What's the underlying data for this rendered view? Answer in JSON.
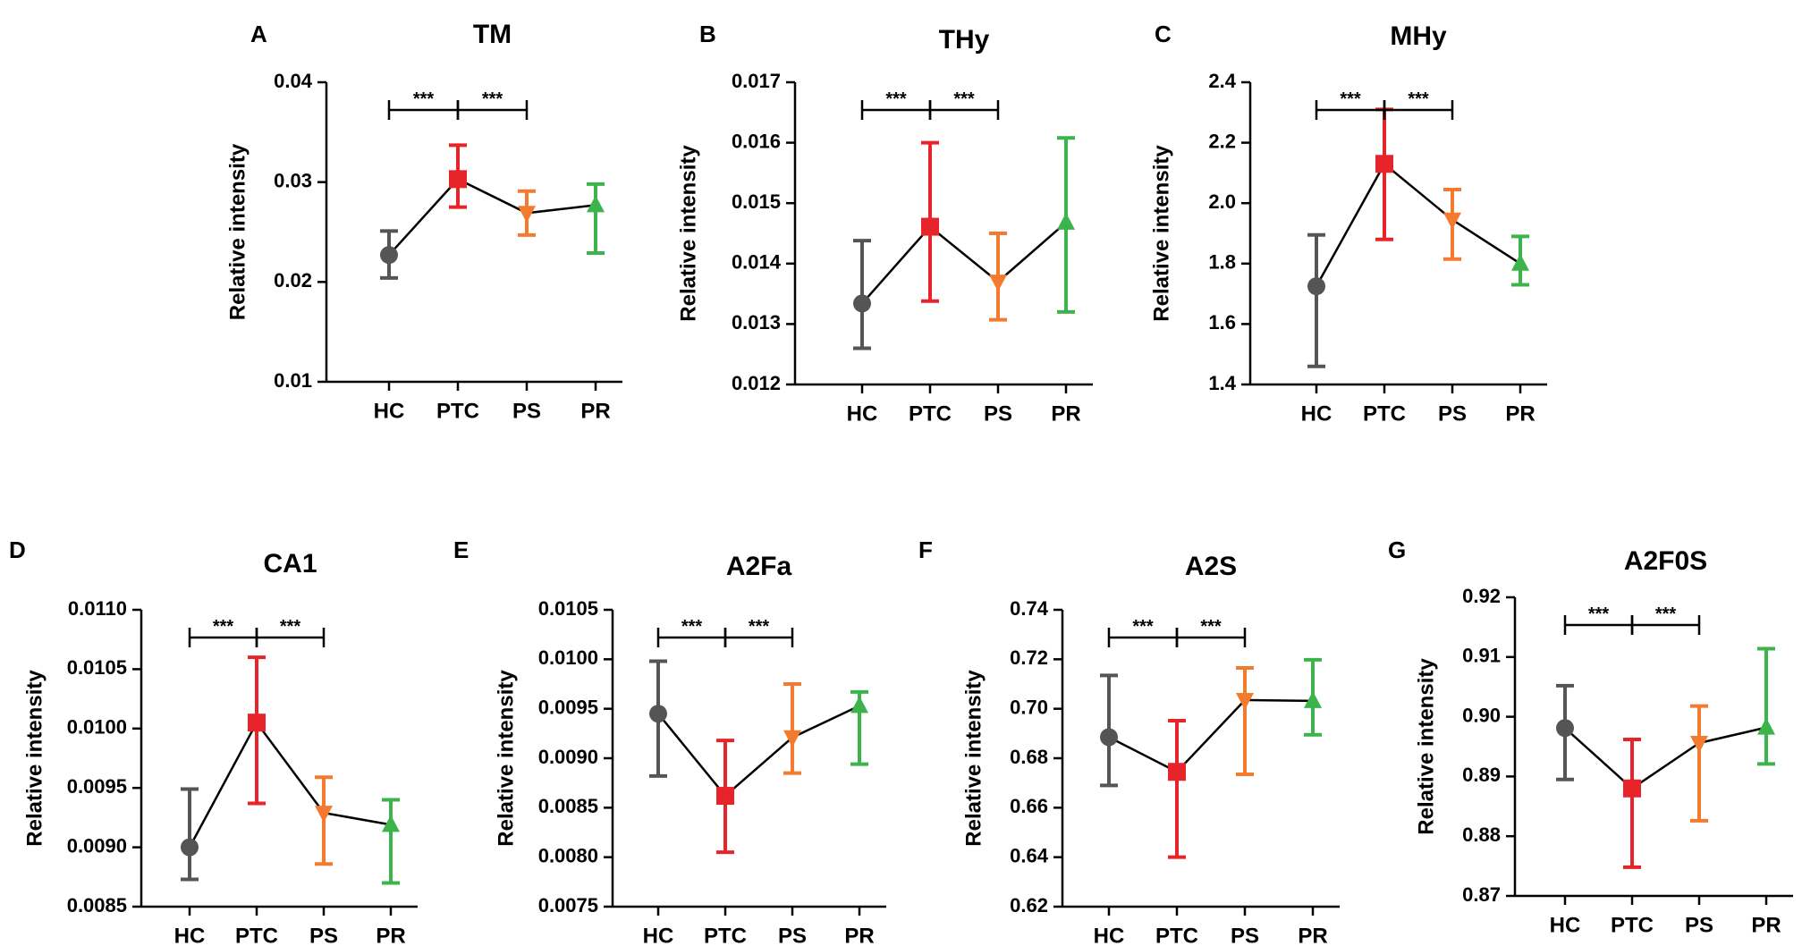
{
  "colors": {
    "HC": "#555555",
    "PTC": "#e8242b",
    "PS": "#f47a30",
    "PR": "#3cb44b",
    "axis": "#000000",
    "line": "#000000"
  },
  "chart_data": [
    {
      "panel": "A",
      "type": "line",
      "title": "TM",
      "ylabel": "Relative intensity",
      "categories": [
        "HC",
        "PTC",
        "PS",
        "PR"
      ],
      "markers": [
        "circle",
        "square",
        "triangle-down",
        "triangle-up"
      ],
      "ylim": [
        0.01,
        0.04
      ],
      "yticks": [
        0.01,
        0.02,
        0.03,
        0.04
      ],
      "ytick_labels": [
        "0.01",
        "0.02",
        "0.03",
        "0.04"
      ],
      "values": [
        0.0227,
        0.0303,
        0.0269,
        0.0277
      ],
      "err_low": [
        0.0204,
        0.0275,
        0.0247,
        0.0229
      ],
      "err_high": [
        0.0251,
        0.0337,
        0.0291,
        0.0298
      ],
      "significance": [
        {
          "from": "HC",
          "to": "PTC",
          "label": "***"
        },
        {
          "from": "PTC",
          "to": "PS",
          "label": "***"
        }
      ]
    },
    {
      "panel": "B",
      "type": "line",
      "title": "THy",
      "ylabel": "Relative intensity",
      "categories": [
        "HC",
        "PTC",
        "PS",
        "PR"
      ],
      "markers": [
        "circle",
        "square",
        "triangle-down",
        "triangle-up"
      ],
      "ylim": [
        0.012,
        0.017
      ],
      "yticks": [
        0.012,
        0.013,
        0.014,
        0.015,
        0.016,
        0.017
      ],
      "ytick_labels": [
        "0.012",
        "0.013",
        "0.014",
        "0.015",
        "0.016",
        "0.017"
      ],
      "values": [
        0.01334,
        0.01461,
        0.0137,
        0.01468
      ],
      "err_low": [
        0.0126,
        0.01338,
        0.01307,
        0.0132
      ],
      "err_high": [
        0.01438,
        0.016,
        0.0145,
        0.01608
      ],
      "significance": [
        {
          "from": "HC",
          "to": "PTC",
          "label": "***"
        },
        {
          "from": "PTC",
          "to": "PS",
          "label": "***"
        }
      ]
    },
    {
      "panel": "C",
      "type": "line",
      "title": "MHy",
      "ylabel": "Relative intensity",
      "categories": [
        "HC",
        "PTC",
        "PS",
        "PR"
      ],
      "markers": [
        "circle",
        "square",
        "triangle-down",
        "triangle-up"
      ],
      "ylim": [
        1.4,
        2.4
      ],
      "yticks": [
        1.4,
        1.6,
        1.8,
        2.0,
        2.2,
        2.4
      ],
      "ytick_labels": [
        "1.4",
        "1.6",
        "1.8",
        "2.0",
        "2.2",
        "2.4"
      ],
      "values": [
        1.725,
        2.13,
        1.945,
        1.8
      ],
      "err_low": [
        1.46,
        1.88,
        1.815,
        1.73
      ],
      "err_high": [
        1.895,
        2.31,
        2.045,
        1.89
      ],
      "significance": [
        {
          "from": "HC",
          "to": "PTC",
          "label": "***"
        },
        {
          "from": "PTC",
          "to": "PS",
          "label": "***"
        }
      ]
    },
    {
      "panel": "D",
      "type": "line",
      "title": "CA1",
      "ylabel": "Relative intensity",
      "categories": [
        "HC",
        "PTC",
        "PS",
        "PR"
      ],
      "markers": [
        "circle",
        "square",
        "triangle-down",
        "triangle-up"
      ],
      "ylim": [
        0.0085,
        0.011
      ],
      "yticks": [
        0.0085,
        0.009,
        0.0095,
        0.01,
        0.0105,
        0.011
      ],
      "ytick_labels": [
        "0.0085",
        "0.0090",
        "0.0095",
        "0.0100",
        "0.0105",
        "0.0110"
      ],
      "values": [
        0.009,
        0.01005,
        0.00929,
        0.00919
      ],
      "err_low": [
        0.00873,
        0.00937,
        0.00886,
        0.0087
      ],
      "err_high": [
        0.00949,
        0.0106,
        0.00959,
        0.0094
      ],
      "significance": [
        {
          "from": "HC",
          "to": "PTC",
          "label": "***"
        },
        {
          "from": "PTC",
          "to": "PS",
          "label": "***"
        }
      ]
    },
    {
      "panel": "E",
      "type": "line",
      "title": "A2Fa",
      "ylabel": "Relative intensity",
      "categories": [
        "HC",
        "PTC",
        "PS",
        "PR"
      ],
      "markers": [
        "circle",
        "square",
        "triangle-down",
        "triangle-up"
      ],
      "ylim": [
        0.0075,
        0.0105
      ],
      "yticks": [
        0.0075,
        0.008,
        0.0085,
        0.009,
        0.0095,
        0.01,
        0.0105
      ],
      "ytick_labels": [
        "0.0075",
        "0.0080",
        "0.0085",
        "0.0090",
        "0.0095",
        "0.0100",
        "0.0105"
      ],
      "values": [
        0.00945,
        0.00862,
        0.00921,
        0.00953
      ],
      "err_low": [
        0.00882,
        0.00805,
        0.00885,
        0.00894
      ],
      "err_high": [
        0.00998,
        0.00918,
        0.00975,
        0.00967
      ],
      "significance": [
        {
          "from": "HC",
          "to": "PTC",
          "label": "***"
        },
        {
          "from": "PTC",
          "to": "PS",
          "label": "***"
        }
      ]
    },
    {
      "panel": "F",
      "type": "line",
      "title": "A2S",
      "ylabel": "Relative intensity",
      "categories": [
        "HC",
        "PTC",
        "PS",
        "PR"
      ],
      "markers": [
        "circle",
        "square",
        "triangle-down",
        "triangle-up"
      ],
      "ylim": [
        0.62,
        0.74
      ],
      "yticks": [
        0.62,
        0.64,
        0.66,
        0.68,
        0.7,
        0.72,
        0.74
      ],
      "ytick_labels": [
        "0.62",
        "0.64",
        "0.66",
        "0.68",
        "0.70",
        "0.72",
        "0.74"
      ],
      "values": [
        0.6885,
        0.6745,
        0.7035,
        0.7032
      ],
      "err_low": [
        0.669,
        0.64,
        0.6735,
        0.6895
      ],
      "err_high": [
        0.7135,
        0.6952,
        0.7165,
        0.7198
      ],
      "significance": [
        {
          "from": "HC",
          "to": "PTC",
          "label": "***"
        },
        {
          "from": "PTC",
          "to": "PS",
          "label": "***"
        }
      ]
    },
    {
      "panel": "G",
      "type": "line",
      "title": "A2F0S",
      "ylabel": "Relative intensity",
      "categories": [
        "HC",
        "PTC",
        "PS",
        "PR"
      ],
      "markers": [
        "circle",
        "square",
        "triangle-down",
        "triangle-up"
      ],
      "ylim": [
        0.87,
        0.92
      ],
      "yticks": [
        0.87,
        0.88,
        0.89,
        0.9,
        0.91,
        0.92
      ],
      "ytick_labels": [
        "0.87",
        "0.88",
        "0.89",
        "0.90",
        "0.91",
        "0.92"
      ],
      "values": [
        0.8981,
        0.888,
        0.8956,
        0.8982
      ],
      "err_low": [
        0.8895,
        0.8748,
        0.8826,
        0.8921
      ],
      "err_high": [
        0.9052,
        0.8962,
        0.9018,
        0.9114
      ],
      "significance": [
        {
          "from": "HC",
          "to": "PTC",
          "label": "***"
        },
        {
          "from": "PTC",
          "to": "PS",
          "label": "***"
        }
      ]
    }
  ]
}
